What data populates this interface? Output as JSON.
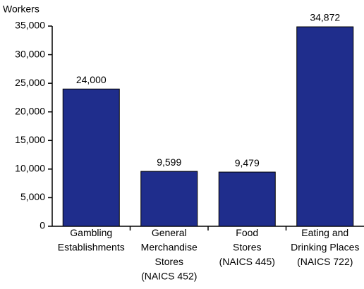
{
  "chart_data": {
    "type": "bar",
    "y_label": "Workers",
    "categories": [
      "Gambling\nEstablishments",
      "General\nMerchandise\nStores\n(NAICS 452)",
      "Food\nStores\n(NAICS 445)",
      "Eating and\nDrinking Places\n(NAICS 722)"
    ],
    "values": [
      24000,
      9599,
      9479,
      34872
    ],
    "value_labels": [
      "24,000",
      "9,599",
      "9,479",
      "34,872"
    ],
    "color": "#1f2d8c",
    "ylim": [
      0,
      35000
    ],
    "yticks": [
      0,
      {
        "value": 5000,
        "label": "5,000"
      },
      {
        "value": 10000,
        "label": "10,000"
      },
      {
        "value": 15000,
        "label": "15,000"
      },
      {
        "value": 20000,
        "label": "20,000"
      },
      {
        "value": 25000,
        "label": "25,000"
      },
      {
        "value": 30000,
        "label": "30,000"
      },
      {
        "value": 35000,
        "label": "35,000"
      }
    ],
    "grid": false
  }
}
